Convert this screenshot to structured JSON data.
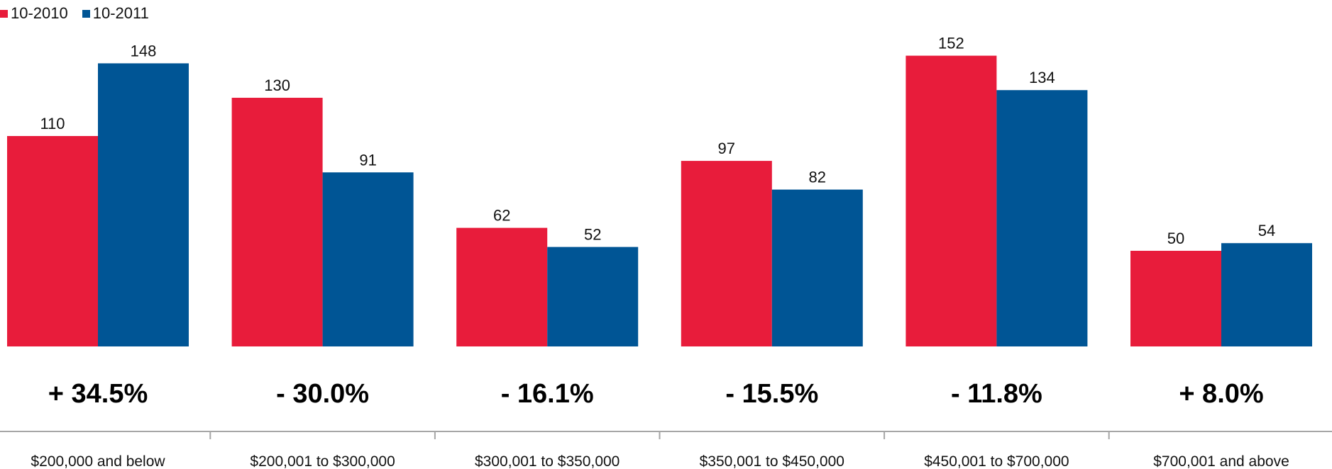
{
  "chart_data": {
    "type": "bar",
    "categories": [
      "$200,000 and below",
      "$200,001 to $300,000",
      "$300,001 to $350,000",
      "$350,001 to $450,000",
      "$450,001 to $700,000",
      "$700,001 and above"
    ],
    "series": [
      {
        "name": "10-2010",
        "color": "#e81c3b",
        "values": [
          110,
          130,
          62,
          97,
          152,
          50
        ]
      },
      {
        "name": "10-2011",
        "color": "#005595",
        "values": [
          148,
          91,
          52,
          82,
          134,
          54
        ]
      }
    ],
    "changes": [
      "+ 34.5%",
      "- 30.0%",
      "- 16.1%",
      "- 15.5%",
      "- 11.8%",
      "+ 8.0%"
    ],
    "legend_position": "top-left",
    "grid": false
  }
}
